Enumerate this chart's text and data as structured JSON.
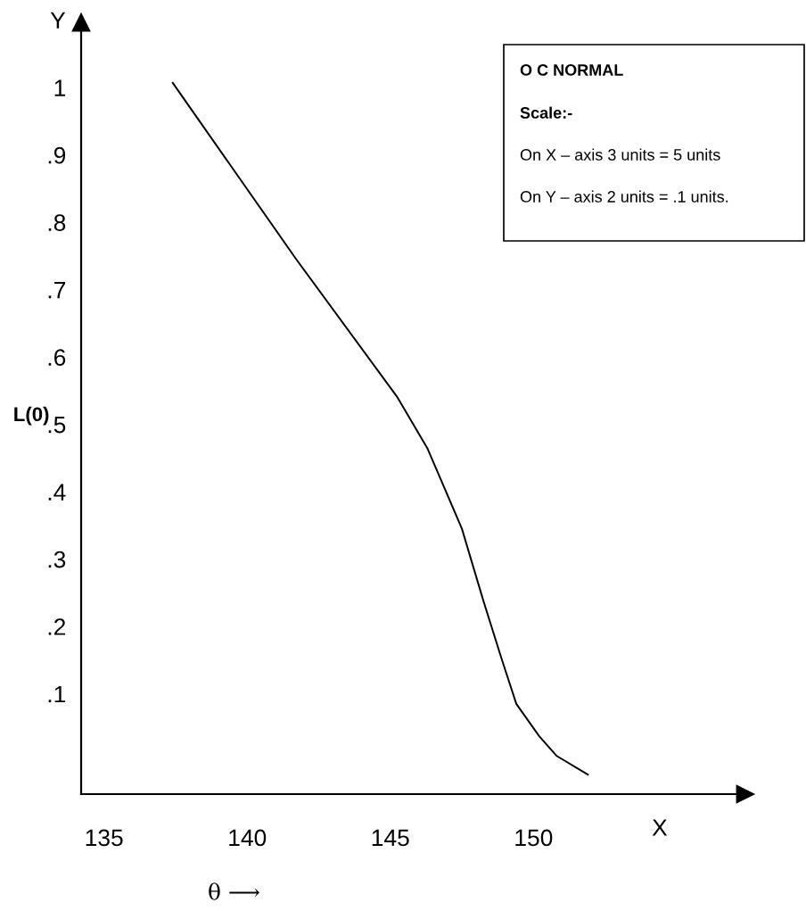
{
  "chart_data": {
    "type": "line",
    "xlabel": "θ ⟶",
    "ylabel": "L(0)",
    "x": [
      137.4,
      141.7,
      145.25,
      146.3,
      147.5,
      148.25,
      148.9,
      149.4,
      150.2,
      150.8,
      151.9
    ],
    "series": [
      {
        "color": "#000000",
        "values": [
          1.007,
          0.746,
          0.54,
          0.464,
          0.345,
          0.238,
          0.15,
          0.085,
          0.037,
          0.008,
          -0.02
        ]
      }
    ],
    "xlim": [
      134.2,
      157.4
    ],
    "ylim": [
      -0.049,
      1.097
    ],
    "xticks": [
      135,
      140,
      145,
      150
    ],
    "yticks": [
      {
        "value": 0.1,
        "label": ".1"
      },
      {
        "value": 0.2,
        "label": ".2"
      },
      {
        "value": 0.3,
        "label": ".3"
      },
      {
        "value": 0.4,
        "label": ".4"
      },
      {
        "value": 0.5,
        "label": ".5"
      },
      {
        "value": 0.6,
        "label": ".6"
      },
      {
        "value": 0.7,
        "label": ".7"
      },
      {
        "value": 0.8,
        "label": ".8"
      },
      {
        "value": 0.9,
        "label": ".9"
      },
      {
        "value": 1,
        "label": "1"
      }
    ],
    "annotations": [
      "X",
      "Y",
      "O C NORMAL",
      "Scale:-",
      "On X – axis 3 units = 5 units",
      "On Y – axis 2 units = .1 units."
    ],
    "grid": false,
    "marker": "none",
    "line_style": "solid"
  }
}
